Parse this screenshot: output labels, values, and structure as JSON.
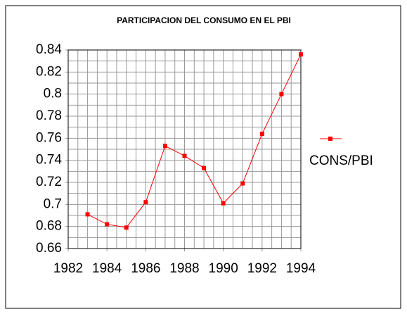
{
  "chart_data": {
    "type": "line",
    "title": "PARTICIPACION DEL CONSUMO EN EL PBI",
    "x": [
      1983,
      1984,
      1985,
      1986,
      1987,
      1988,
      1989,
      1990,
      1991,
      1992,
      1993,
      1994
    ],
    "series": [
      {
        "name": "CONS/PBI",
        "color": "#ff0000",
        "values": [
          0.691,
          0.682,
          0.679,
          0.702,
          0.753,
          0.744,
          0.733,
          0.701,
          0.719,
          0.764,
          0.8,
          0.836
        ]
      }
    ],
    "xlim": [
      1982,
      1994
    ],
    "xticks": [
      1982,
      1984,
      1986,
      1988,
      1990,
      1992,
      1994
    ],
    "ylim": [
      0.66,
      0.84
    ],
    "yticks": [
      0.66,
      0.68,
      0.7,
      0.72,
      0.74,
      0.76,
      0.78,
      0.8,
      0.82,
      0.84
    ],
    "xminorticks": [
      1982.5,
      1983,
      1983.5,
      1984.5,
      1985,
      1985.5,
      1986.5,
      1987,
      1987.5,
      1988.5,
      1989,
      1989.5,
      1990.5,
      1991,
      1991.5,
      1992.5,
      1993,
      1993.5
    ],
    "yminorticks": [
      0.67,
      0.69,
      0.71,
      0.73,
      0.75,
      0.77,
      0.79,
      0.81,
      0.83
    ],
    "grid": true,
    "legend": "right"
  }
}
